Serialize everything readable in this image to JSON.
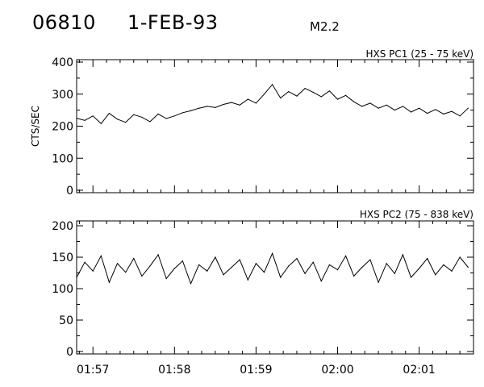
{
  "header": {
    "event_id": "06810",
    "date": "1-FEB-93",
    "flare_class": "M2.2"
  },
  "chart_data": [
    {
      "type": "line",
      "title": "HXS PC1 (25 - 75 keV)",
      "ylabel": "CTS/SEC",
      "xlabel": "",
      "ylim": [
        0,
        400
      ],
      "yticks": [
        "0",
        "100",
        "200",
        "300",
        "400"
      ],
      "xticks": [
        "01:57",
        "01:58",
        "01:59",
        "02:00",
        "02:01"
      ],
      "series": [
        {
          "x": [
            "01:56:48",
            "01:56:54",
            "01:57:00",
            "01:57:06",
            "01:57:12",
            "01:57:18",
            "01:57:24",
            "01:57:30",
            "01:57:36",
            "01:57:42",
            "01:57:48",
            "01:57:54",
            "01:58:00",
            "01:58:06",
            "01:58:12",
            "01:58:18",
            "01:58:24",
            "01:58:30",
            "01:58:36",
            "01:58:42",
            "01:58:48",
            "01:58:54",
            "01:59:00",
            "01:59:06",
            "01:59:12",
            "01:59:18",
            "01:59:24",
            "01:59:30",
            "01:59:36",
            "01:59:42",
            "01:59:48",
            "01:59:54",
            "02:00:00",
            "02:00:06",
            "02:00:12",
            "02:00:18",
            "02:00:24",
            "02:00:30",
            "02:00:36",
            "02:00:42",
            "02:00:48",
            "02:00:54",
            "02:01:00",
            "02:01:06",
            "02:01:12",
            "02:01:18",
            "02:01:24",
            "02:01:30",
            "02:01:36"
          ],
          "values": [
            225,
            218,
            232,
            208,
            240,
            222,
            212,
            236,
            228,
            214,
            238,
            224,
            232,
            242,
            248,
            256,
            262,
            258,
            268,
            274,
            266,
            284,
            272,
            300,
            330,
            288,
            308,
            294,
            318,
            306,
            292,
            310,
            284,
            296,
            276,
            262,
            272,
            256,
            266,
            250,
            262,
            244,
            256,
            240,
            252,
            238,
            246,
            232,
            256
          ]
        }
      ]
    },
    {
      "type": "line",
      "title": "HXS PC2 (75 - 838 keV)",
      "ylabel": "",
      "xlabel": "",
      "ylim": [
        0,
        200
      ],
      "yticks": [
        "0",
        "50",
        "100",
        "150",
        "200"
      ],
      "xticks": [
        "01:57",
        "01:58",
        "01:59",
        "02:00",
        "02:01"
      ],
      "series": [
        {
          "x": [
            "01:56:48",
            "01:56:54",
            "01:57:00",
            "01:57:06",
            "01:57:12",
            "01:57:18",
            "01:57:24",
            "01:57:30",
            "01:57:36",
            "01:57:42",
            "01:57:48",
            "01:57:54",
            "01:58:00",
            "01:58:06",
            "01:58:12",
            "01:58:18",
            "01:58:24",
            "01:58:30",
            "01:58:36",
            "01:58:42",
            "01:58:48",
            "01:58:54",
            "01:59:00",
            "01:59:06",
            "01:59:12",
            "01:59:18",
            "01:59:24",
            "01:59:30",
            "01:59:36",
            "01:59:42",
            "01:59:48",
            "01:59:54",
            "02:00:00",
            "02:00:06",
            "02:00:12",
            "02:00:18",
            "02:00:24",
            "02:00:30",
            "02:00:36",
            "02:00:42",
            "02:00:48",
            "02:00:54",
            "02:01:00",
            "02:01:06",
            "02:01:12",
            "02:01:18",
            "02:01:24",
            "02:01:30",
            "02:01:36"
          ],
          "values": [
            118,
            142,
            128,
            152,
            110,
            140,
            126,
            148,
            120,
            136,
            154,
            116,
            132,
            144,
            108,
            138,
            128,
            150,
            122,
            134,
            146,
            114,
            140,
            126,
            156,
            118,
            136,
            148,
            124,
            142,
            112,
            138,
            130,
            152,
            120,
            134,
            146,
            110,
            140,
            124,
            154,
            118,
            132,
            148,
            122,
            138,
            128,
            150,
            134
          ]
        }
      ]
    }
  ]
}
